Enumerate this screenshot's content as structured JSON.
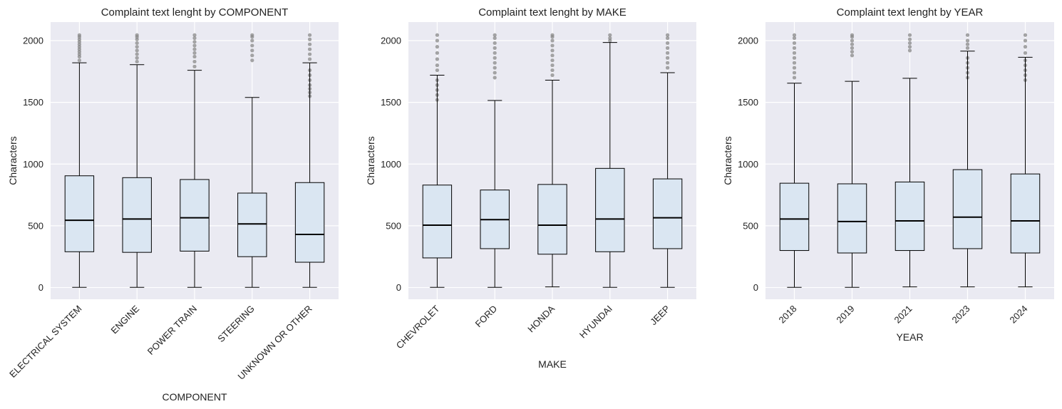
{
  "chart_data": [
    {
      "type": "box",
      "title": "Complaint text lenght by COMPONENT",
      "xlabel": "COMPONENT",
      "ylabel": "Characters",
      "ylim": [
        -95,
        2150
      ],
      "yticks": [
        0,
        500,
        1000,
        1500,
        2000
      ],
      "grid": true,
      "categories": [
        "ELECTRICAL SYSTEM",
        "ENGINE",
        "POWER TRAIN",
        "STEERING",
        "UNKNOWN OR OTHER"
      ],
      "boxes": [
        {
          "whislo": 2,
          "q1": 290,
          "med": 545,
          "q3": 905,
          "whishi": 1820,
          "fliers": [
            1840,
            1870,
            1890,
            1910,
            1930,
            1950,
            1970,
            1990,
            2010,
            2030,
            2045
          ]
        },
        {
          "whislo": 2,
          "q1": 285,
          "med": 555,
          "q3": 890,
          "whishi": 1805,
          "fliers": [
            1830,
            1860,
            1890,
            1920,
            1950,
            1980,
            2010,
            2030,
            2045
          ]
        },
        {
          "whislo": 2,
          "q1": 295,
          "med": 565,
          "q3": 875,
          "whishi": 1760,
          "fliers": [
            1790,
            1830,
            1870,
            1900,
            1930,
            1960,
            1990,
            2020,
            2045
          ]
        },
        {
          "whislo": 2,
          "q1": 250,
          "med": 515,
          "q3": 765,
          "whishi": 1540,
          "fliers": [
            1840,
            1880,
            1920,
            1960,
            2000,
            2030,
            2045
          ]
        },
        {
          "whislo": 2,
          "q1": 205,
          "med": 430,
          "q3": 850,
          "whishi": 1820,
          "fliers": [
            1550,
            1580,
            1610,
            1640,
            1680,
            1720,
            1760,
            1850,
            1890,
            1930,
            1970,
            2010,
            2045
          ]
        }
      ],
      "box_color": "#dae6f2",
      "flier_color": "#808080"
    },
    {
      "type": "box",
      "title": "Complaint text lenght by MAKE",
      "xlabel": "MAKE",
      "ylabel": "Characters",
      "ylim": [
        -95,
        2150
      ],
      "yticks": [
        0,
        500,
        1000,
        1500,
        2000
      ],
      "grid": true,
      "categories": [
        "CHEVROLET",
        "FORD",
        "HONDA",
        "HYUNDAI",
        "JEEP"
      ],
      "boxes": [
        {
          "whislo": 2,
          "q1": 240,
          "med": 505,
          "q3": 830,
          "whishi": 1720,
          "fliers": [
            1520,
            1560,
            1600,
            1640,
            1680,
            1760,
            1800,
            1850,
            1900,
            1950,
            2000,
            2045
          ]
        },
        {
          "whislo": 2,
          "q1": 315,
          "med": 550,
          "q3": 790,
          "whishi": 1515,
          "fliers": [
            1700,
            1740,
            1780,
            1820,
            1860,
            1900,
            1940,
            1980,
            2020,
            2045
          ]
        },
        {
          "whislo": 5,
          "q1": 270,
          "med": 505,
          "q3": 835,
          "whishi": 1680,
          "fliers": [
            1720,
            1760,
            1800,
            1840,
            1880,
            1920,
            1960,
            2000,
            2030,
            2045
          ]
        },
        {
          "whislo": 2,
          "q1": 290,
          "med": 555,
          "q3": 965,
          "whishi": 1985,
          "fliers": [
            2000,
            2020,
            2045
          ]
        },
        {
          "whislo": 2,
          "q1": 315,
          "med": 565,
          "q3": 880,
          "whishi": 1740,
          "fliers": [
            1780,
            1820,
            1860,
            1900,
            1940,
            1980,
            2020,
            2045
          ]
        }
      ],
      "box_color": "#dae6f2",
      "flier_color": "#808080"
    },
    {
      "type": "box",
      "title": "Complaint text lenght by YEAR",
      "xlabel": "YEAR",
      "ylabel": "Characters",
      "ylim": [
        -95,
        2150
      ],
      "yticks": [
        0,
        500,
        1000,
        1500,
        2000
      ],
      "grid": true,
      "categories": [
        "2018",
        "2019",
        "2021",
        "2023",
        "2024"
      ],
      "boxes": [
        {
          "whislo": 2,
          "q1": 300,
          "med": 555,
          "q3": 845,
          "whishi": 1655,
          "fliers": [
            1700,
            1740,
            1780,
            1820,
            1860,
            1900,
            1940,
            1980,
            2020,
            2045
          ]
        },
        {
          "whislo": 2,
          "q1": 280,
          "med": 535,
          "q3": 840,
          "whishi": 1670,
          "fliers": [
            1880,
            1910,
            1940,
            1970,
            2000,
            2030,
            2045
          ]
        },
        {
          "whislo": 5,
          "q1": 300,
          "med": 540,
          "q3": 855,
          "whishi": 1695,
          "fliers": [
            1920,
            1950,
            1980,
            2010,
            2045
          ]
        },
        {
          "whislo": 5,
          "q1": 315,
          "med": 570,
          "q3": 955,
          "whishi": 1915,
          "fliers": [
            1700,
            1740,
            1780,
            1820,
            1860,
            1940,
            1970,
            2000,
            2045
          ]
        },
        {
          "whislo": 5,
          "q1": 280,
          "med": 540,
          "q3": 920,
          "whishi": 1865,
          "fliers": [
            1680,
            1720,
            1760,
            1800,
            1840,
            1900,
            1950,
            2000,
            2045
          ]
        }
      ],
      "box_color": "#dae6f2",
      "flier_color": "#808080"
    }
  ],
  "style": {
    "axes_bg": "#eaeaf2",
    "grid_color": "#ffffff",
    "line_color": "#000000",
    "text_color": "#222222"
  }
}
